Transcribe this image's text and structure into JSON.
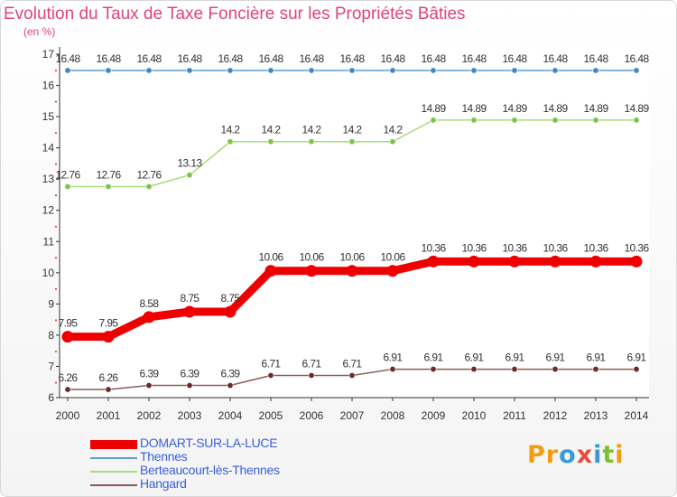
{
  "title": "Evolution du Taux de Taxe Foncière sur les Propriétés Bâties",
  "subtitle": "(en %)",
  "brand": {
    "letters": [
      "P",
      "r",
      "o",
      "x",
      "i",
      "t",
      "i"
    ],
    "colors": [
      "#f39c12",
      "#f39c12",
      "#3a9ad9",
      "#e74c3c",
      "#3a9ad9",
      "#7cbf2e",
      "#f39c12"
    ]
  },
  "chart_data": {
    "type": "line",
    "title": "Evolution du Taux de Taxe Foncière sur les Propriétés Bâties",
    "ylabel": "(en %)",
    "xlabel": "",
    "categories": [
      "2000",
      "2001",
      "2002",
      "2003",
      "2004",
      "2005",
      "2006",
      "2007",
      "2008",
      "2009",
      "2010",
      "2011",
      "2012",
      "2013",
      "2014"
    ],
    "ylim": [
      6,
      17
    ],
    "yticks": [
      "6",
      "7",
      "8",
      "9",
      "10",
      "11",
      "12",
      "13",
      "14",
      "15",
      "16",
      "17"
    ],
    "grid": false,
    "legend_position": "bottom-left",
    "series": [
      {
        "name": "DOMART-SUR-LA-LUCE",
        "color": "#ee0000",
        "marker": "#ee0000",
        "width": 9,
        "r": 6.5,
        "values": [
          7.95,
          7.95,
          8.58,
          8.75,
          8.75,
          10.06,
          10.06,
          10.06,
          10.06,
          10.36,
          10.36,
          10.36,
          10.36,
          10.36,
          10.36
        ],
        "labels": [
          "7.95",
          "7.95",
          "8.58",
          "8.75",
          "8.75",
          "10.06",
          "10.06",
          "10.06",
          "10.06",
          "10.36",
          "10.36",
          "10.36",
          "10.36",
          "10.36",
          "10.36"
        ]
      },
      {
        "name": "Thennes",
        "color": "#5b9fd1",
        "marker": "#3f87c4",
        "width": 1.5,
        "r": 3.2,
        "values": [
          16.48,
          16.48,
          16.48,
          16.48,
          16.48,
          16.48,
          16.48,
          16.48,
          16.48,
          16.48,
          16.48,
          16.48,
          16.48,
          16.48,
          16.48
        ],
        "labels": [
          "16.48",
          "16.48",
          "16.48",
          "16.48",
          "16.48",
          "16.48",
          "16.48",
          "16.48",
          "16.48",
          "16.48",
          "16.48",
          "16.48",
          "16.48",
          "16.48",
          "16.48"
        ]
      },
      {
        "name": "Berteaucourt-lès-Thennes",
        "color": "#a6dd7a",
        "marker": "#7cc34c",
        "width": 1.5,
        "r": 3.2,
        "values": [
          12.76,
          12.76,
          12.76,
          13.13,
          14.2,
          14.2,
          14.2,
          14.2,
          14.2,
          14.89,
          14.89,
          14.89,
          14.89,
          14.89,
          14.89
        ],
        "labels": [
          "12.76",
          "12.76",
          "12.76",
          "13.13",
          "14.2",
          "14.2",
          "14.2",
          "14.2",
          "14.2",
          "14.89",
          "14.89",
          "14.89",
          "14.89",
          "14.89",
          "14.89"
        ]
      },
      {
        "name": "Hangard",
        "color": "#8a5a5a",
        "marker": "#6e2a2a",
        "width": 1.5,
        "r": 3.2,
        "values": [
          6.26,
          6.26,
          6.39,
          6.39,
          6.39,
          6.71,
          6.71,
          6.71,
          6.91,
          6.91,
          6.91,
          6.91,
          6.91,
          6.91,
          6.91
        ],
        "labels": [
          "6.26",
          "6.26",
          "6.39",
          "6.39",
          "6.39",
          "6.71",
          "6.71",
          "6.71",
          "6.91",
          "6.91",
          "6.91",
          "6.91",
          "6.91",
          "6.91",
          "6.91"
        ]
      }
    ]
  }
}
